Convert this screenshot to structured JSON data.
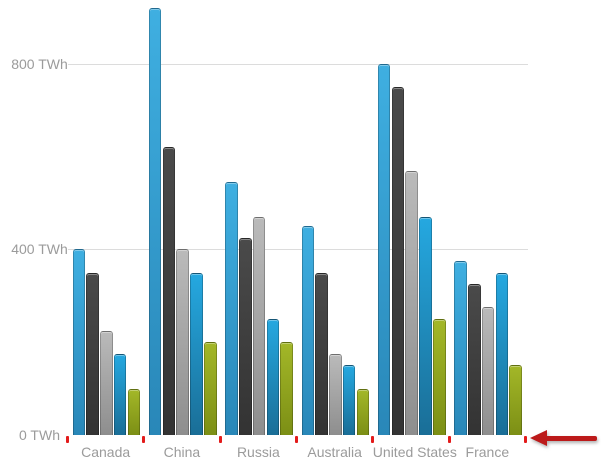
{
  "chart_data": {
    "type": "bar",
    "categories": [
      "Canada",
      "China",
      "Russia",
      "Australia",
      "United States",
      "France"
    ],
    "series": [
      {
        "name": "light-blue",
        "color": "#3fafe1",
        "color_end": "#2987b8",
        "values": [
          400,
          920,
          545,
          450,
          800,
          375
        ]
      },
      {
        "name": "dark-gray",
        "color": "#4a4a4a",
        "color_end": "#333333",
        "values": [
          350,
          620,
          425,
          350,
          750,
          325
        ]
      },
      {
        "name": "silver",
        "color": "#bababa",
        "color_end": "#8e8e8e",
        "values": [
          225,
          400,
          470,
          175,
          570,
          275
        ]
      },
      {
        "name": "blue",
        "color": "#25a8e0",
        "color_end": "#1a6e97",
        "values": [
          175,
          350,
          250,
          150,
          470,
          350
        ]
      },
      {
        "name": "olive",
        "color": "#a3b728",
        "color_end": "#7c8f15",
        "values": [
          100,
          200,
          200,
          100,
          250,
          150
        ]
      }
    ],
    "unit": "TWh",
    "y_axis": {
      "ticks": [
        {
          "value": 0,
          "label": "0 TWh"
        },
        {
          "value": 400,
          "label": "400 TWh"
        },
        {
          "value": 800,
          "label": "800 TWh"
        }
      ],
      "min": 0,
      "max": 940
    },
    "grid": "horizontal",
    "legend": "none",
    "title": ""
  },
  "annotations": {
    "axis_tick_color": "#e31b1b",
    "arrow_color": "#bc1a1a",
    "arrow_direction": "left",
    "arrow_points_at": "x-axis-end"
  },
  "colors": {
    "background": "#ffffff",
    "gridline": "#dcdcdc",
    "axis_label": "#9b9b9b"
  }
}
